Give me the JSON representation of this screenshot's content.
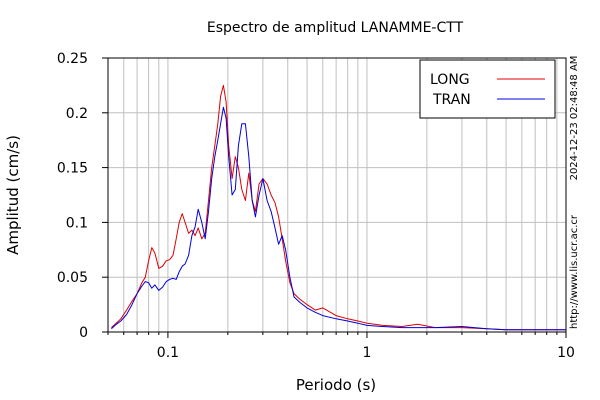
{
  "chart_data": {
    "type": "line",
    "title": "Espectro de amplitud LANAMME-CTT",
    "xlabel": "Periodo (s)",
    "ylabel": "Amplitud (cm/s)",
    "x_scale": "log",
    "xlim": [
      0.05,
      10
    ],
    "ylim": [
      0,
      0.25
    ],
    "x_ticks": [
      0.1,
      1,
      10
    ],
    "x_tick_labels": [
      "0.1",
      "1",
      "10"
    ],
    "y_ticks": [
      0,
      0.05,
      0.1,
      0.15,
      0.2,
      0.25
    ],
    "y_tick_labels": [
      "0",
      "0.05",
      "0.1",
      "0.15",
      "0.2",
      "0.25"
    ],
    "grid": true,
    "legend_position": "top-right",
    "timestamp": "2024-12-23 02:48:48 AM",
    "source": "http://www.lis.ucr.ac.cr",
    "series": [
      {
        "name": "LONG",
        "color": "#dd0000",
        "points": [
          [
            0.052,
            0.004
          ],
          [
            0.055,
            0.008
          ],
          [
            0.058,
            0.012
          ],
          [
            0.062,
            0.02
          ],
          [
            0.066,
            0.028
          ],
          [
            0.07,
            0.035
          ],
          [
            0.074,
            0.045
          ],
          [
            0.077,
            0.05
          ],
          [
            0.08,
            0.065
          ],
          [
            0.083,
            0.077
          ],
          [
            0.086,
            0.072
          ],
          [
            0.09,
            0.058
          ],
          [
            0.094,
            0.06
          ],
          [
            0.098,
            0.065
          ],
          [
            0.102,
            0.066
          ],
          [
            0.106,
            0.07
          ],
          [
            0.11,
            0.085
          ],
          [
            0.114,
            0.1
          ],
          [
            0.118,
            0.108
          ],
          [
            0.122,
            0.1
          ],
          [
            0.127,
            0.09
          ],
          [
            0.132,
            0.093
          ],
          [
            0.137,
            0.088
          ],
          [
            0.142,
            0.095
          ],
          [
            0.148,
            0.085
          ],
          [
            0.154,
            0.09
          ],
          [
            0.16,
            0.12
          ],
          [
            0.166,
            0.15
          ],
          [
            0.172,
            0.17
          ],
          [
            0.178,
            0.19
          ],
          [
            0.184,
            0.215
          ],
          [
            0.19,
            0.225
          ],
          [
            0.196,
            0.21
          ],
          [
            0.202,
            0.17
          ],
          [
            0.21,
            0.14
          ],
          [
            0.218,
            0.16
          ],
          [
            0.226,
            0.15
          ],
          [
            0.235,
            0.13
          ],
          [
            0.245,
            0.12
          ],
          [
            0.255,
            0.145
          ],
          [
            0.265,
            0.12
          ],
          [
            0.275,
            0.11
          ],
          [
            0.287,
            0.135
          ],
          [
            0.3,
            0.14
          ],
          [
            0.315,
            0.135
          ],
          [
            0.33,
            0.125
          ],
          [
            0.345,
            0.118
          ],
          [
            0.36,
            0.105
          ],
          [
            0.375,
            0.085
          ],
          [
            0.39,
            0.065
          ],
          [
            0.41,
            0.045
          ],
          [
            0.43,
            0.035
          ],
          [
            0.46,
            0.03
          ],
          [
            0.5,
            0.025
          ],
          [
            0.55,
            0.02
          ],
          [
            0.6,
            0.022
          ],
          [
            0.7,
            0.015
          ],
          [
            0.8,
            0.012
          ],
          [
            0.9,
            0.01
          ],
          [
            1.0,
            0.008
          ],
          [
            1.2,
            0.006
          ],
          [
            1.5,
            0.005
          ],
          [
            1.8,
            0.007
          ],
          [
            2.2,
            0.004
          ],
          [
            3.0,
            0.004
          ],
          [
            4.0,
            0.003
          ],
          [
            5.0,
            0.002
          ],
          [
            7.0,
            0.002
          ],
          [
            10.0,
            0.002
          ]
        ]
      },
      {
        "name": "TRAN",
        "color": "#0000dd",
        "points": [
          [
            0.052,
            0.003
          ],
          [
            0.055,
            0.007
          ],
          [
            0.058,
            0.01
          ],
          [
            0.062,
            0.016
          ],
          [
            0.066,
            0.025
          ],
          [
            0.07,
            0.035
          ],
          [
            0.074,
            0.042
          ],
          [
            0.077,
            0.046
          ],
          [
            0.08,
            0.045
          ],
          [
            0.083,
            0.04
          ],
          [
            0.086,
            0.043
          ],
          [
            0.09,
            0.038
          ],
          [
            0.094,
            0.041
          ],
          [
            0.098,
            0.046
          ],
          [
            0.102,
            0.048
          ],
          [
            0.106,
            0.049
          ],
          [
            0.11,
            0.048
          ],
          [
            0.114,
            0.055
          ],
          [
            0.118,
            0.06
          ],
          [
            0.122,
            0.062
          ],
          [
            0.127,
            0.07
          ],
          [
            0.132,
            0.088
          ],
          [
            0.137,
            0.096
          ],
          [
            0.142,
            0.112
          ],
          [
            0.148,
            0.1
          ],
          [
            0.154,
            0.085
          ],
          [
            0.16,
            0.11
          ],
          [
            0.166,
            0.14
          ],
          [
            0.172,
            0.16
          ],
          [
            0.178,
            0.175
          ],
          [
            0.184,
            0.19
          ],
          [
            0.19,
            0.205
          ],
          [
            0.196,
            0.195
          ],
          [
            0.202,
            0.16
          ],
          [
            0.21,
            0.125
          ],
          [
            0.218,
            0.13
          ],
          [
            0.226,
            0.17
          ],
          [
            0.235,
            0.19
          ],
          [
            0.245,
            0.19
          ],
          [
            0.255,
            0.16
          ],
          [
            0.265,
            0.12
          ],
          [
            0.275,
            0.105
          ],
          [
            0.287,
            0.125
          ],
          [
            0.3,
            0.14
          ],
          [
            0.315,
            0.12
          ],
          [
            0.33,
            0.11
          ],
          [
            0.345,
            0.095
          ],
          [
            0.36,
            0.08
          ],
          [
            0.375,
            0.088
          ],
          [
            0.39,
            0.075
          ],
          [
            0.41,
            0.05
          ],
          [
            0.43,
            0.032
          ],
          [
            0.46,
            0.027
          ],
          [
            0.5,
            0.022
          ],
          [
            0.55,
            0.018
          ],
          [
            0.6,
            0.015
          ],
          [
            0.7,
            0.012
          ],
          [
            0.8,
            0.01
          ],
          [
            0.9,
            0.008
          ],
          [
            1.0,
            0.006
          ],
          [
            1.2,
            0.005
          ],
          [
            1.5,
            0.004
          ],
          [
            1.8,
            0.004
          ],
          [
            2.2,
            0.004
          ],
          [
            3.0,
            0.005
          ],
          [
            4.0,
            0.003
          ],
          [
            5.0,
            0.002
          ],
          [
            7.0,
            0.002
          ],
          [
            10.0,
            0.002
          ]
        ]
      }
    ]
  }
}
